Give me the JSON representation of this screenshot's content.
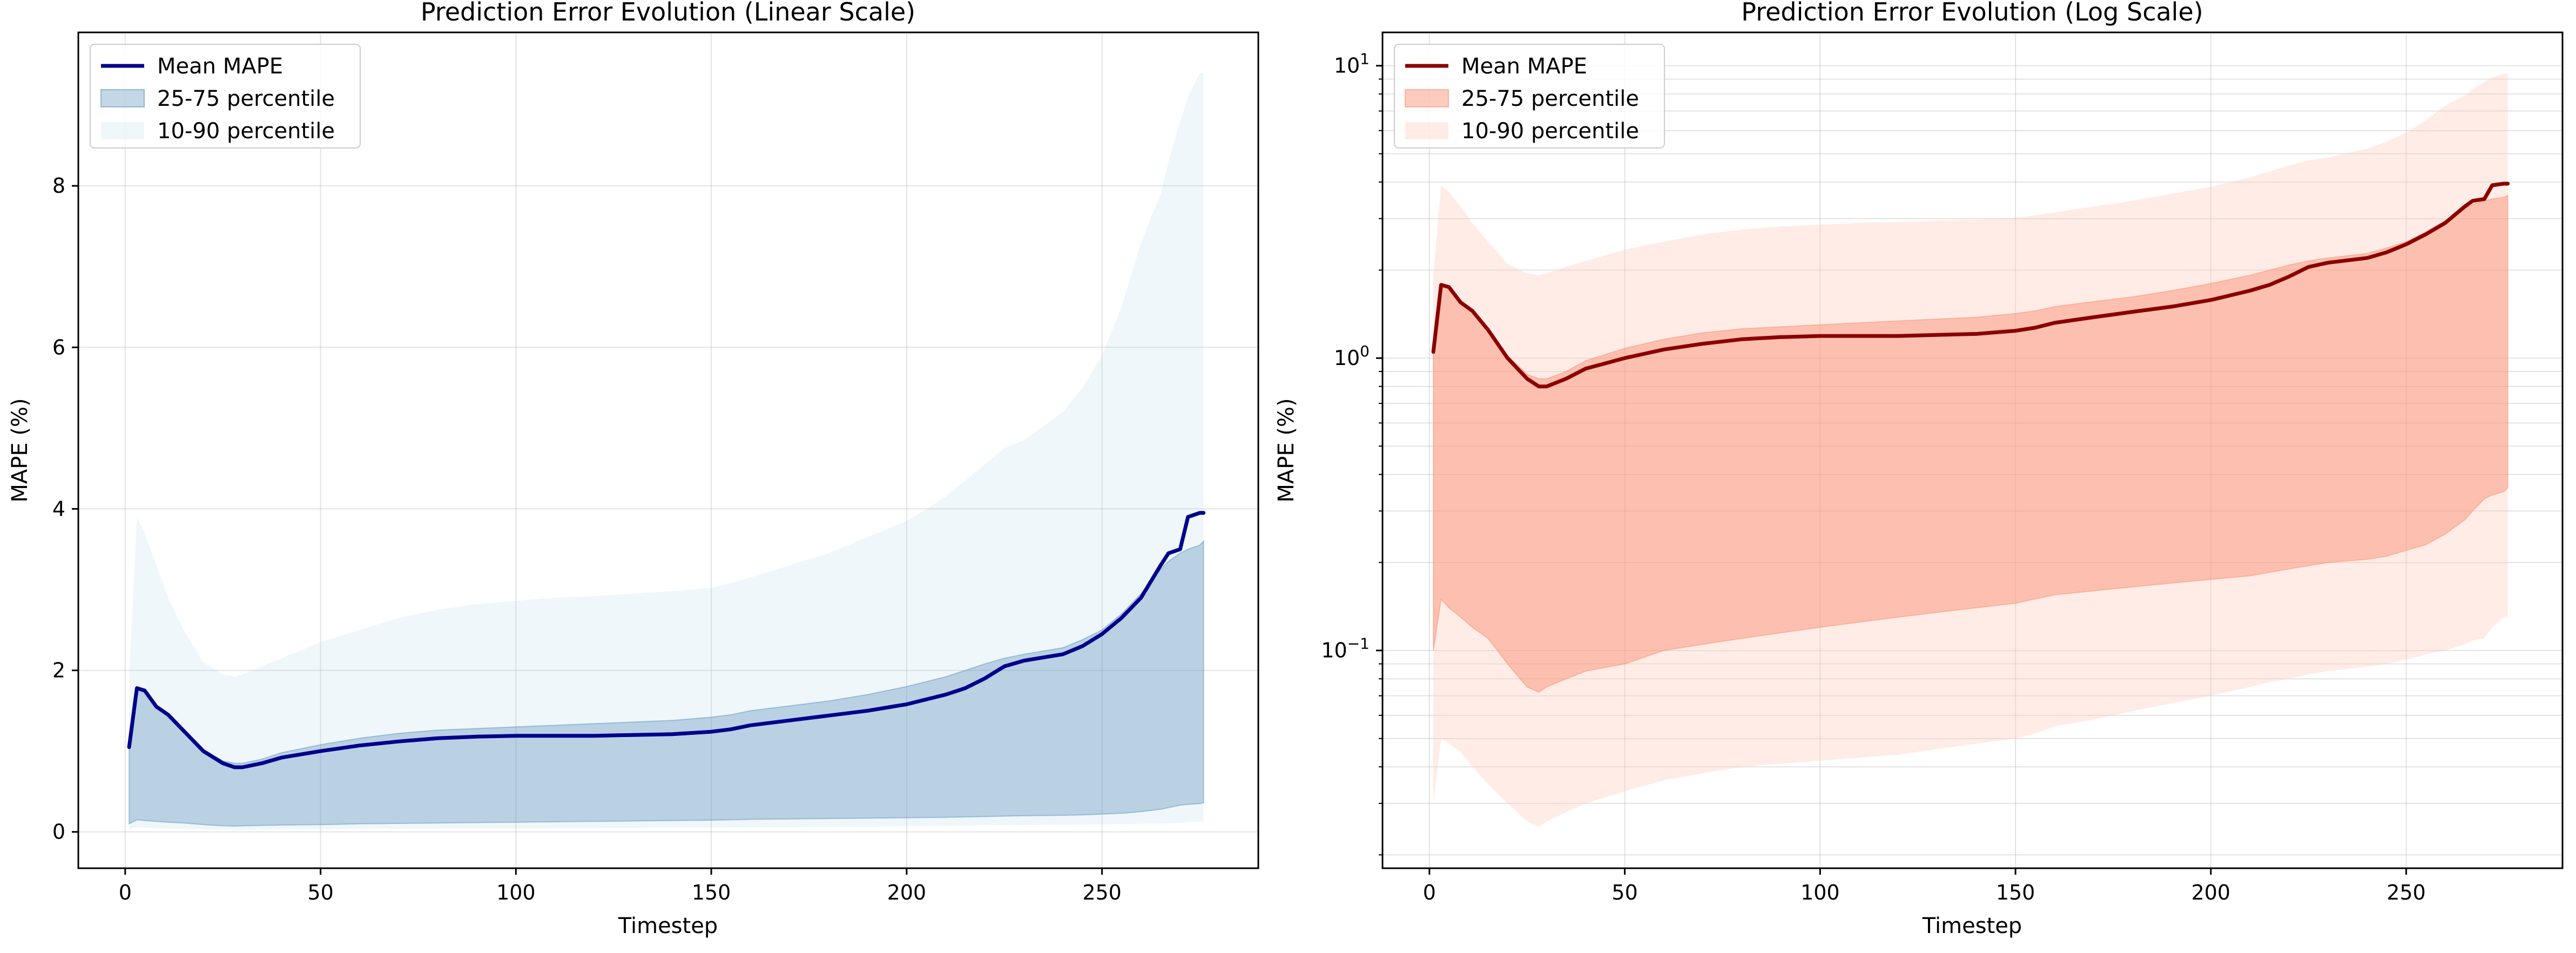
{
  "chart_data": [
    {
      "type": "line",
      "title": "Prediction Error Evolution (Linear Scale)",
      "xlabel": "Timestep",
      "ylabel": "MAPE (%)",
      "xlim": [
        -12,
        290
      ],
      "ylim": [
        -0.45,
        9.9
      ],
      "yscale": "linear",
      "grid": true,
      "legend_position": "upper-left",
      "x_ticks": [
        0,
        50,
        100,
        150,
        200,
        250
      ],
      "y_ticks": [
        0,
        2,
        4,
        6,
        8
      ],
      "colors": {
        "mean": "#00008b",
        "band_25_75": "#4682b4",
        "band_10_90": "#add8e6"
      },
      "x": [
        1,
        3,
        5,
        8,
        11,
        15,
        20,
        25,
        28,
        30,
        35,
        40,
        50,
        60,
        70,
        80,
        90,
        100,
        110,
        120,
        130,
        140,
        150,
        155,
        160,
        170,
        180,
        190,
        200,
        210,
        215,
        220,
        225,
        230,
        240,
        245,
        250,
        255,
        260,
        265,
        267,
        270,
        272,
        275,
        276
      ],
      "series": [
        {
          "name": "Mean MAPE",
          "values": [
            1.05,
            1.78,
            1.75,
            1.55,
            1.45,
            1.25,
            1.0,
            0.85,
            0.8,
            0.8,
            0.85,
            0.92,
            1.0,
            1.07,
            1.12,
            1.16,
            1.18,
            1.19,
            1.19,
            1.19,
            1.2,
            1.21,
            1.24,
            1.27,
            1.32,
            1.38,
            1.44,
            1.5,
            1.58,
            1.7,
            1.78,
            1.9,
            2.05,
            2.12,
            2.2,
            2.3,
            2.45,
            2.65,
            2.9,
            3.3,
            3.45,
            3.5,
            3.9,
            3.95,
            3.95
          ]
        },
        {
          "name": "25-75 percentile",
          "lower": [
            0.1,
            0.15,
            0.14,
            0.13,
            0.12,
            0.11,
            0.09,
            0.075,
            0.072,
            0.075,
            0.08,
            0.085,
            0.09,
            0.1,
            0.105,
            0.11,
            0.115,
            0.12,
            0.125,
            0.13,
            0.135,
            0.14,
            0.145,
            0.15,
            0.155,
            0.16,
            0.165,
            0.17,
            0.175,
            0.18,
            0.185,
            0.19,
            0.195,
            0.2,
            0.205,
            0.21,
            0.22,
            0.23,
            0.25,
            0.28,
            0.3,
            0.33,
            0.34,
            0.35,
            0.36
          ],
          "upper": [
            1.05,
            1.78,
            1.75,
            1.55,
            1.45,
            1.25,
            1.02,
            0.88,
            0.85,
            0.85,
            0.9,
            0.98,
            1.08,
            1.16,
            1.22,
            1.26,
            1.28,
            1.3,
            1.32,
            1.34,
            1.36,
            1.38,
            1.42,
            1.45,
            1.5,
            1.56,
            1.62,
            1.7,
            1.8,
            1.92,
            2.0,
            2.08,
            2.15,
            2.2,
            2.28,
            2.38,
            2.5,
            2.7,
            2.95,
            3.25,
            3.35,
            3.45,
            3.5,
            3.55,
            3.6
          ]
        },
        {
          "name": "10-90 percentile",
          "lower": [
            0.03,
            0.05,
            0.048,
            0.045,
            0.04,
            0.035,
            0.03,
            0.026,
            0.025,
            0.026,
            0.028,
            0.03,
            0.033,
            0.036,
            0.038,
            0.04,
            0.041,
            0.042,
            0.043,
            0.044,
            0.046,
            0.048,
            0.05,
            0.052,
            0.055,
            0.058,
            0.062,
            0.066,
            0.07,
            0.075,
            0.078,
            0.08,
            0.083,
            0.085,
            0.088,
            0.09,
            0.093,
            0.097,
            0.1,
            0.105,
            0.108,
            0.11,
            0.12,
            0.13,
            0.13
          ],
          "upper": [
            1.9,
            3.9,
            3.7,
            3.3,
            2.9,
            2.5,
            2.1,
            1.95,
            1.92,
            1.95,
            2.05,
            2.15,
            2.35,
            2.5,
            2.65,
            2.75,
            2.82,
            2.86,
            2.9,
            2.92,
            2.95,
            2.98,
            3.02,
            3.08,
            3.15,
            3.3,
            3.45,
            3.65,
            3.85,
            4.15,
            4.35,
            4.55,
            4.75,
            4.85,
            5.2,
            5.5,
            5.9,
            6.5,
            7.3,
            7.9,
            8.3,
            8.8,
            9.1,
            9.4,
            9.4
          ]
        }
      ]
    },
    {
      "type": "line",
      "title": "Prediction Error Evolution (Log Scale)",
      "xlabel": "Timestep",
      "ylabel": "MAPE (%)",
      "xlim": [
        -12,
        290
      ],
      "ylim": [
        0.018,
        13
      ],
      "yscale": "log",
      "grid": true,
      "legend_position": "upper-left",
      "x_ticks": [
        0,
        50,
        100,
        150,
        200,
        250
      ],
      "y_ticks": [
        {
          "base": "10",
          "exp": "1",
          "value": 10
        },
        {
          "base": "10",
          "exp": "0",
          "value": 1
        },
        {
          "base": "10",
          "exp": "−1",
          "value": 0.1
        }
      ],
      "colors": {
        "mean": "#8b0000",
        "band_25_75": "#fa8060",
        "band_10_90": "#ffc8b8"
      },
      "series_ref": "same data as linear chart",
      "legend": [
        "Mean MAPE",
        "25-75 percentile",
        "10-90 percentile"
      ]
    }
  ]
}
